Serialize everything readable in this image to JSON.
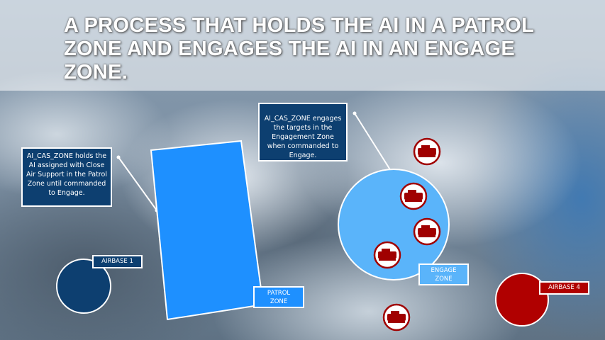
{
  "title": "A PROCESS THAT HOLDS THE AI IN A PATROL ZONE AND ENGAGES THE AI IN AN ENGAGE ZONE.",
  "notes": {
    "patrol": "AI_CAS_ZONE holds the AI assigned with Close Air Support in the Patrol Zone until commanded to Engage.",
    "engage": "AI_CAS_ZONE engages the targets in the Engagement Zone when commanded to Engage."
  },
  "labels": {
    "airbase1": "AIRBASE 1",
    "patrol_zone": "PATROL ZONE",
    "engage_zone": "ENGAGE ZONE",
    "airbase4": "AIRBASE 4"
  },
  "colors": {
    "note_bg": "#0d3f70",
    "patrol_zone": "#1e90ff",
    "engage_zone": "#5ab4fa",
    "airbase1": "#0d3f70",
    "airbase4": "#b00000",
    "target": "#a00000"
  },
  "icons": {
    "target": "tank-icon"
  }
}
